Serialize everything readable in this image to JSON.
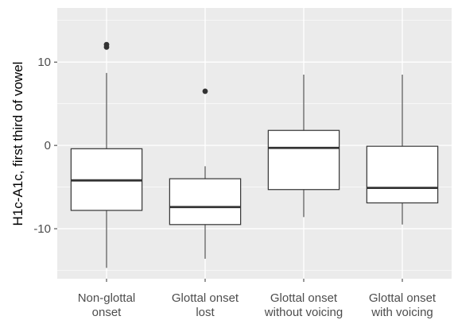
{
  "chart_data": {
    "type": "boxplot",
    "xlabel": "",
    "ylabel": "H1c-A1c, first third of vowel",
    "ylim": [
      -16,
      16.5
    ],
    "yticks": [
      -10,
      0,
      10
    ],
    "grid": true,
    "legend": "none",
    "categories": [
      [
        "Non-glottal",
        "onset"
      ],
      [
        "Glottal onset",
        "lost"
      ],
      [
        "Glottal onset",
        "without voicing"
      ],
      [
        "Glottal onset",
        "with voicing"
      ]
    ],
    "boxes": [
      {
        "whisker_low": -14.7,
        "q1": -7.8,
        "median": -4.2,
        "q3": -0.4,
        "whisker_high": 8.7,
        "outliers": [
          11.8,
          12.1
        ]
      },
      {
        "whisker_low": -13.6,
        "q1": -9.5,
        "median": -7.4,
        "q3": -4.0,
        "whisker_high": -2.5,
        "outliers": [
          6.5
        ]
      },
      {
        "whisker_low": -8.6,
        "q1": -5.3,
        "median": -0.3,
        "q3": 1.8,
        "whisker_high": 8.5,
        "outliers": []
      },
      {
        "whisker_low": -9.5,
        "q1": -6.9,
        "median": -5.1,
        "q3": -0.1,
        "whisker_high": 8.5,
        "outliers": []
      }
    ],
    "colors": {
      "panel": "#ebebeb",
      "grid_major": "#ffffff",
      "box_fill": "#ffffff",
      "box_line": "#333333",
      "tick_text": "#4d4d4d"
    }
  }
}
